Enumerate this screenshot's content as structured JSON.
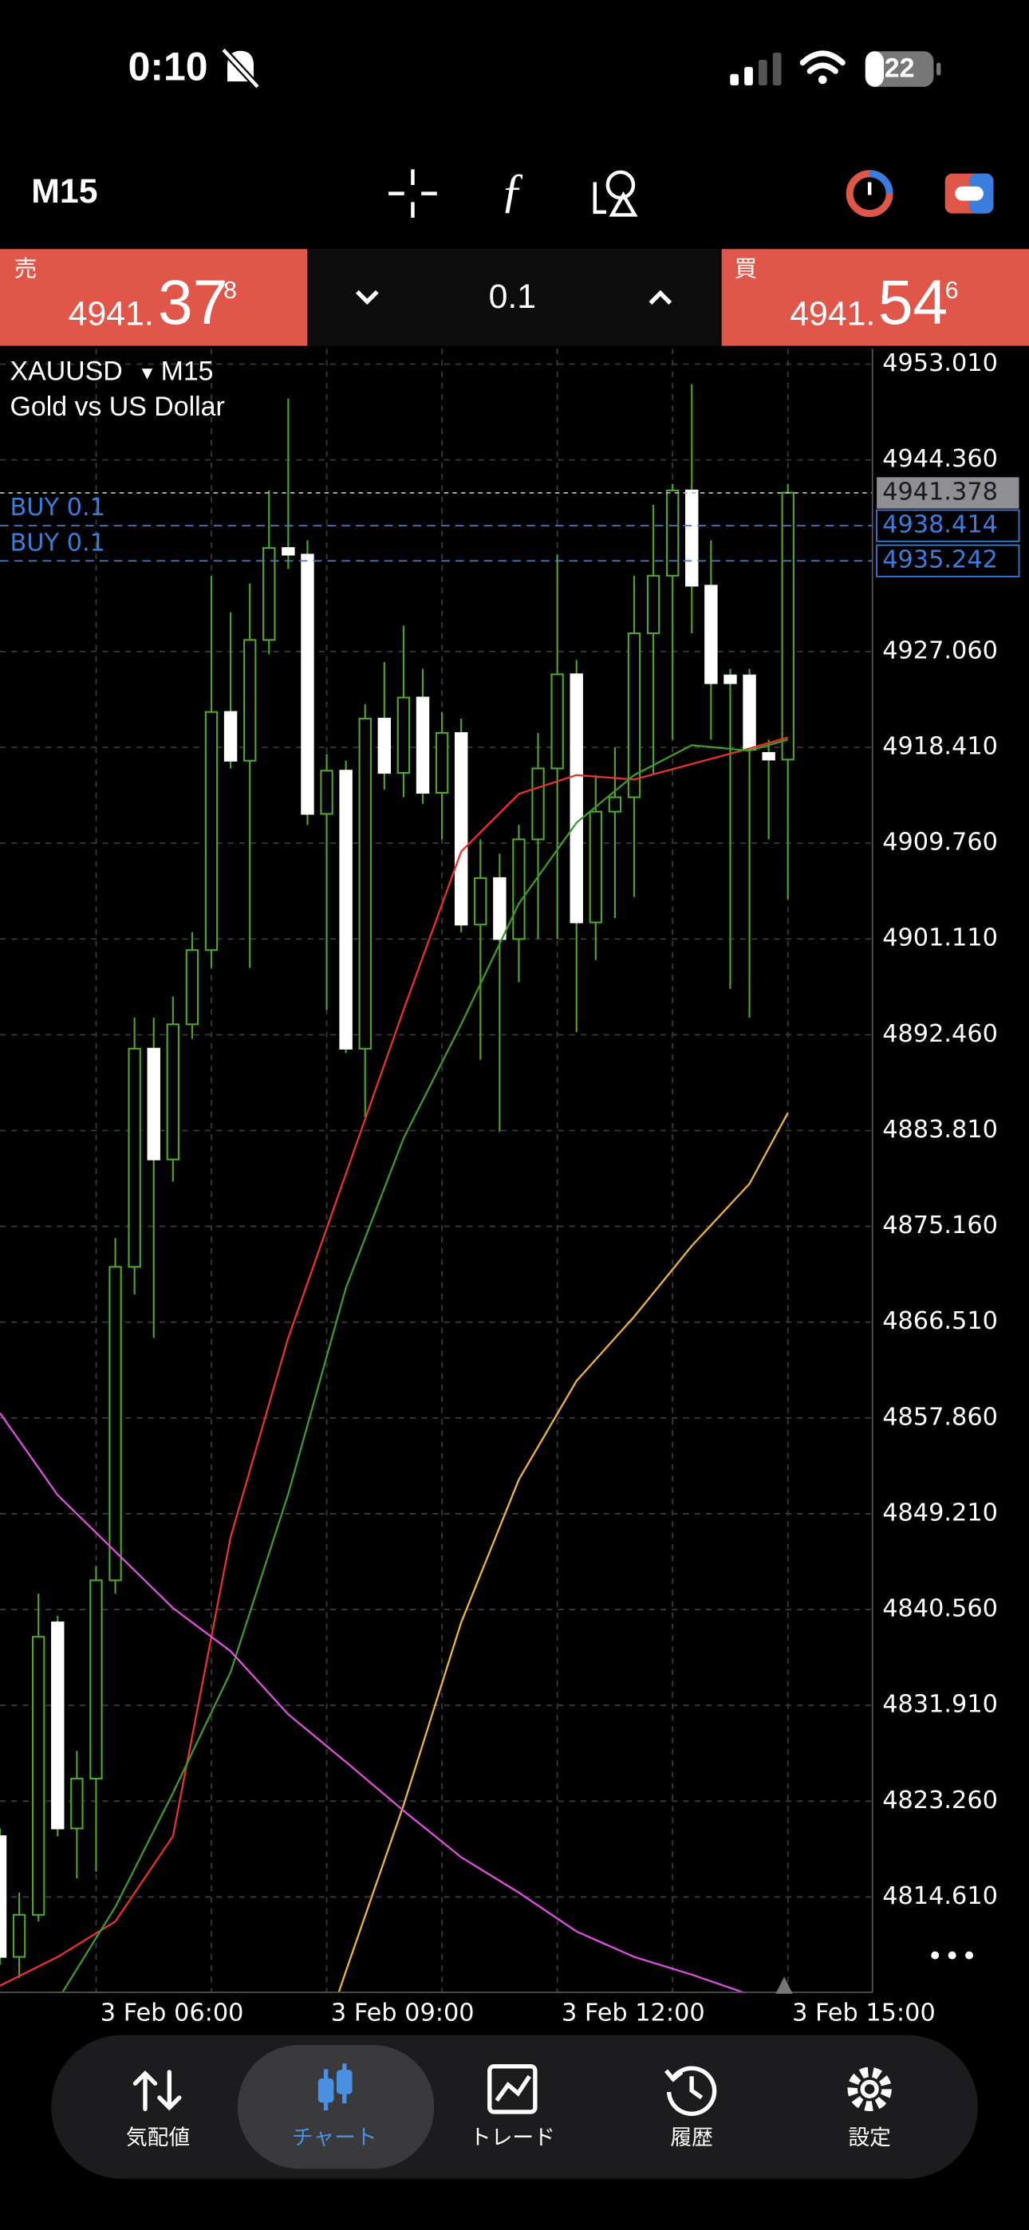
{
  "status_bar": {
    "time": "0:10",
    "battery": "22"
  },
  "toolbar": {
    "timeframe": "M15"
  },
  "trade_panel": {
    "sell_label": "売",
    "sell_price_main": "4941.",
    "sell_price_big": "37",
    "sell_price_small": "8",
    "volume": "0.1",
    "buy_label": "買",
    "buy_price_main": "4941.",
    "buy_price_big": "54",
    "buy_price_small": "6"
  },
  "nav": {
    "tabs": [
      "気配値",
      "チャート",
      "トレード",
      "履歴",
      "設定"
    ]
  },
  "chart_data": {
    "type": "candlestick",
    "symbol": "XAUUSD",
    "timeframe": "M15",
    "description": "Gold vs US Dollar",
    "ylim": [
      4806.0,
      4954.4
    ],
    "yticks": [
      {
        "value": 4953.01,
        "label": "4953.010"
      },
      {
        "value": 4944.36,
        "label": "4944.360"
      },
      {
        "value": 4927.06,
        "label": "4927.060"
      },
      {
        "value": 4918.41,
        "label": "4918.410"
      },
      {
        "value": 4909.76,
        "label": "4909.760"
      },
      {
        "value": 4901.11,
        "label": "4901.110"
      },
      {
        "value": 4892.46,
        "label": "4892.460"
      },
      {
        "value": 4883.81,
        "label": "4883.810"
      },
      {
        "value": 4875.16,
        "label": "4875.160"
      },
      {
        "value": 4866.51,
        "label": "4866.510"
      },
      {
        "value": 4857.86,
        "label": "4857.860"
      },
      {
        "value": 4849.21,
        "label": "4849.210"
      },
      {
        "value": 4840.56,
        "label": "4840.560"
      },
      {
        "value": 4831.91,
        "label": "4831.910"
      },
      {
        "value": 4823.26,
        "label": "4823.260"
      },
      {
        "value": 4814.61,
        "label": "4814.610"
      }
    ],
    "xlim": [
      0,
      45.4
    ],
    "xticks": [
      {
        "value": 5,
        "label": "3 Feb 06:00"
      },
      {
        "value": 17,
        "label": "3 Feb 09:00"
      },
      {
        "value": 29,
        "label": "3 Feb 12:00"
      },
      {
        "value": 41,
        "label": "3 Feb 15:00"
      }
    ],
    "grid": true,
    "up_color": "#4fa52c",
    "down_color": "#ffffff",
    "candles": {
      "open": [
        4820.1,
        4809.2,
        4813.0,
        4839.4,
        4820.8,
        4825.3,
        4843.2,
        4871.5,
        4891.2,
        4881.2,
        4893.4,
        4900.1,
        4921.6,
        4917.2,
        4928.1,
        4936.4,
        4935.8,
        4912.4,
        4916.3,
        4891.2,
        4921.0,
        4916.1,
        4922.9,
        4914.3,
        4919.7,
        4902.4,
        4906.6,
        4901.1,
        4910.1,
        4916.5,
        4925.0,
        4902.6,
        4912.6,
        4913.9,
        4928.7,
        4933.9,
        4941.6,
        4933.0,
        4924.9,
        4924.9,
        4917.9,
        4917.3
      ],
      "high": [
        4820.8,
        4815.0,
        4842.0,
        4840.0,
        4827.8,
        4844.5,
        4874.1,
        4894.0,
        4894.0,
        4895.9,
        4901.7,
        4933.9,
        4930.6,
        4933.2,
        4941.6,
        4949.9,
        4937.1,
        4917.8,
        4917.2,
        4922.3,
        4926.1,
        4929.4,
        4925.5,
        4921.6,
        4921.0,
        4910.1,
        4908.8,
        4911.4,
        4919.7,
        4935.8,
        4926.3,
        4915.9,
        4918.4,
        4933.9,
        4940.3,
        4942.2,
        4951.2,
        4937.1,
        4925.5,
        4925.5,
        4919.1,
        4942.2
      ],
      "low": [
        4808.5,
        4807.3,
        4812.4,
        4820.1,
        4816.3,
        4816.9,
        4842.0,
        4869.0,
        4865.1,
        4879.2,
        4892.1,
        4898.5,
        4916.5,
        4898.5,
        4926.8,
        4934.5,
        4911.4,
        4894.7,
        4890.8,
        4885.0,
        4914.6,
        4913.9,
        4913.3,
        4910.1,
        4901.7,
        4890.2,
        4883.7,
        4897.2,
        4901.1,
        4901.1,
        4892.7,
        4899.2,
        4903.0,
        4904.9,
        4916.0,
        4919.1,
        4928.7,
        4919.1,
        4896.6,
        4894.0,
        4910.1,
        4904.7
      ],
      "close": [
        4809.2,
        4813.0,
        4838.1,
        4820.8,
        4825.3,
        4843.2,
        4871.5,
        4891.2,
        4881.2,
        4893.4,
        4900.1,
        4921.6,
        4917.2,
        4928.1,
        4936.4,
        4935.8,
        4912.4,
        4916.3,
        4891.2,
        4921.0,
        4916.1,
        4922.9,
        4914.3,
        4919.7,
        4902.4,
        4906.6,
        4901.1,
        4910.1,
        4916.5,
        4925.0,
        4902.6,
        4912.6,
        4913.9,
        4928.7,
        4933.9,
        4941.6,
        4933.0,
        4924.2,
        4924.2,
        4918.2,
        4917.3,
        4941.4
      ]
    },
    "series": [
      {
        "color": "#e8322b",
        "x": [
          0,
          3,
          6,
          9,
          12,
          15,
          18,
          21,
          24,
          27,
          30,
          33,
          36,
          39,
          41
        ],
        "values": [
          4806.6,
          4809.2,
          4812.4,
          4820.1,
          4847.1,
          4865.1,
          4879.9,
          4894.7,
          4909.0,
          4914.2,
          4915.9,
          4915.5,
          4916.9,
          4918.3,
          4919.3
        ]
      },
      {
        "color": "#3f9a2a",
        "x": [
          3,
          6,
          9,
          12,
          15,
          18,
          21,
          24,
          27,
          30,
          33,
          36,
          39,
          41
        ],
        "values": [
          4805.3,
          4813.7,
          4824.0,
          4834.9,
          4851.0,
          4869.6,
          4883.1,
          4893.4,
          4904.3,
          4911.6,
          4915.9,
          4918.6,
          4918.1,
          4919.1
        ]
      },
      {
        "color": "#f0b340",
        "x": [
          17,
          18,
          21,
          24,
          27,
          30,
          33,
          36,
          39,
          41
        ],
        "values": [
          4802.8,
          4807.9,
          4822.9,
          4839.4,
          4852.3,
          4861.2,
          4867.0,
          4873.4,
          4879.0,
          4885.4
        ]
      },
      {
        "color": "#e050e0",
        "x": [
          0,
          3,
          6,
          9,
          12,
          15,
          18,
          21,
          24,
          27,
          30,
          33,
          36,
          39
        ],
        "values": [
          4858.3,
          4850.9,
          4845.8,
          4840.7,
          4836.8,
          4831.1,
          4826.8,
          4822.4,
          4818.2,
          4815.0,
          4811.5,
          4809.2,
          4807.6,
          4805.8
        ]
      }
    ],
    "current_price": 4941.378,
    "price_lines": [
      {
        "label": "BUY 0.1",
        "value": 4938.414,
        "color": "#3b7ddd"
      },
      {
        "label": "BUY 0.1",
        "value": 4935.242,
        "color": "#3b7ddd"
      }
    ]
  }
}
